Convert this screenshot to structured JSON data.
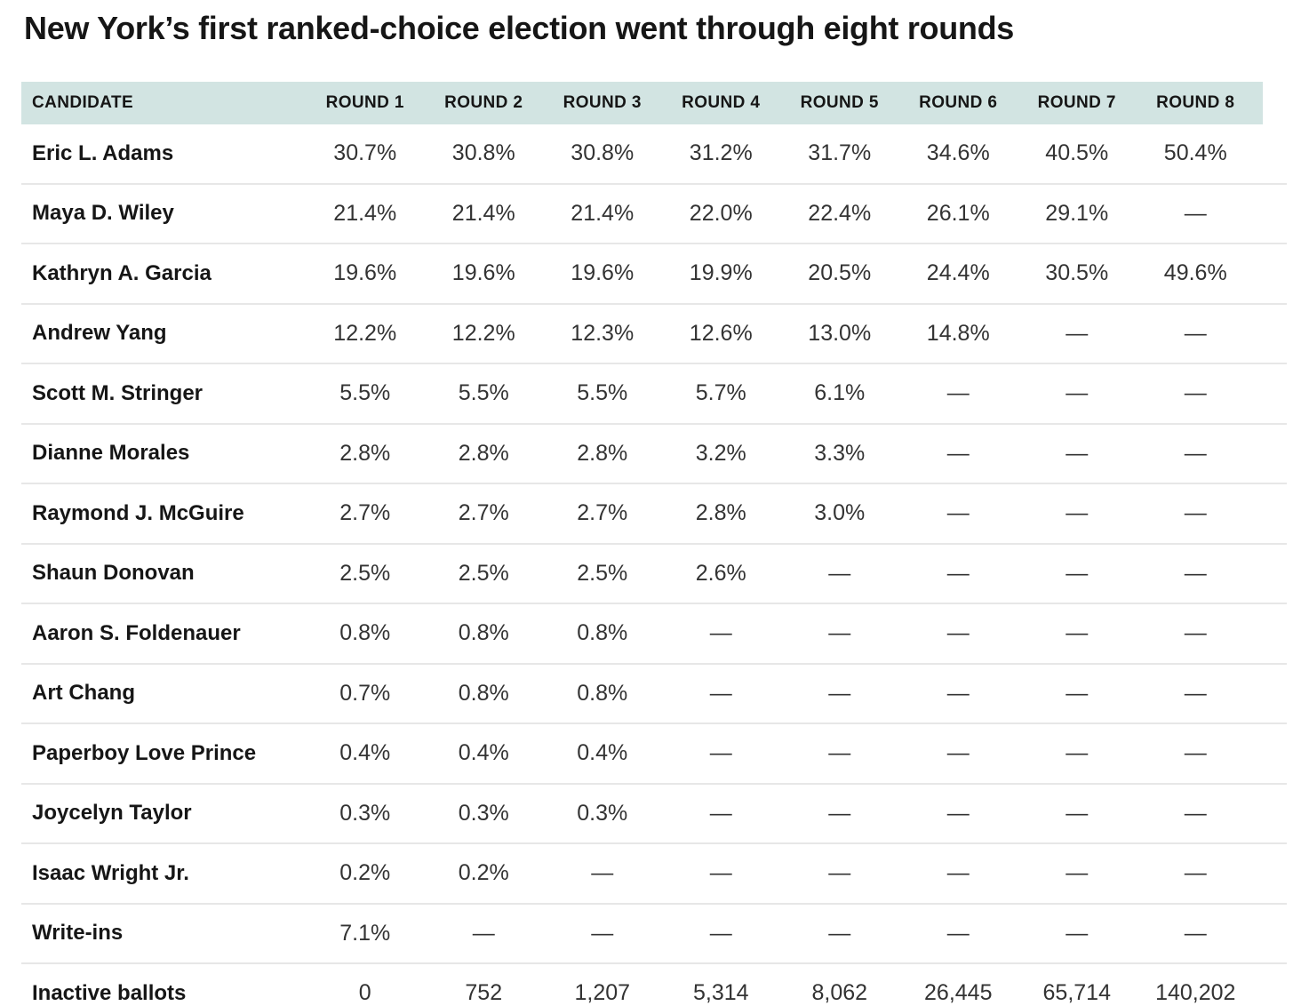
{
  "title": "New York’s first ranked-choice election went through eight rounds",
  "colors": {
    "header_bg": "#d2e4e2",
    "divider": "#e7e7e7",
    "title_text": "#161616",
    "value_text": "#333333"
  },
  "chart_data": {
    "type": "table",
    "title": "New York’s first ranked-choice election went through eight rounds",
    "columns": [
      "CANDIDATE",
      "ROUND 1",
      "ROUND 2",
      "ROUND 3",
      "ROUND 4",
      "ROUND 5",
      "ROUND 6",
      "ROUND 7",
      "ROUND 8"
    ],
    "rows": [
      {
        "candidate": "Eric L. Adams",
        "values": [
          "30.7%",
          "30.8%",
          "30.8%",
          "31.2%",
          "31.7%",
          "34.6%",
          "40.5%",
          "50.4%"
        ]
      },
      {
        "candidate": "Maya D. Wiley",
        "values": [
          "21.4%",
          "21.4%",
          "21.4%",
          "22.0%",
          "22.4%",
          "26.1%",
          "29.1%",
          "—"
        ]
      },
      {
        "candidate": "Kathryn A. Garcia",
        "values": [
          "19.6%",
          "19.6%",
          "19.6%",
          "19.9%",
          "20.5%",
          "24.4%",
          "30.5%",
          "49.6%"
        ]
      },
      {
        "candidate": "Andrew Yang",
        "values": [
          "12.2%",
          "12.2%",
          "12.3%",
          "12.6%",
          "13.0%",
          "14.8%",
          "—",
          "—"
        ]
      },
      {
        "candidate": "Scott M. Stringer",
        "values": [
          "5.5%",
          "5.5%",
          "5.5%",
          "5.7%",
          "6.1%",
          "—",
          "—",
          "—"
        ]
      },
      {
        "candidate": "Dianne Morales",
        "values": [
          "2.8%",
          "2.8%",
          "2.8%",
          "3.2%",
          "3.3%",
          "—",
          "—",
          "—"
        ]
      },
      {
        "candidate": "Raymond J. McGuire",
        "values": [
          "2.7%",
          "2.7%",
          "2.7%",
          "2.8%",
          "3.0%",
          "—",
          "—",
          "—"
        ]
      },
      {
        "candidate": "Shaun Donovan",
        "values": [
          "2.5%",
          "2.5%",
          "2.5%",
          "2.6%",
          "—",
          "—",
          "—",
          "—"
        ]
      },
      {
        "candidate": "Aaron S. Foldenauer",
        "values": [
          "0.8%",
          "0.8%",
          "0.8%",
          "—",
          "—",
          "—",
          "—",
          "—"
        ]
      },
      {
        "candidate": "Art Chang",
        "values": [
          "0.7%",
          "0.8%",
          "0.8%",
          "—",
          "—",
          "—",
          "—",
          "—"
        ]
      },
      {
        "candidate": "Paperboy Love Prince",
        "values": [
          "0.4%",
          "0.4%",
          "0.4%",
          "—",
          "—",
          "—",
          "—",
          "—"
        ]
      },
      {
        "candidate": "Joycelyn Taylor",
        "values": [
          "0.3%",
          "0.3%",
          "0.3%",
          "—",
          "—",
          "—",
          "—",
          "—"
        ]
      },
      {
        "candidate": "Isaac Wright Jr.",
        "values": [
          "0.2%",
          "0.2%",
          "—",
          "—",
          "—",
          "—",
          "—",
          "—"
        ]
      },
      {
        "candidate": "Write-ins",
        "values": [
          "7.1%",
          "—",
          "—",
          "—",
          "—",
          "—",
          "—",
          "—"
        ]
      },
      {
        "candidate": "Inactive ballots",
        "values": [
          "0",
          "752",
          "1,207",
          "5,314",
          "8,062",
          "26,445",
          "65,714",
          "140,202"
        ]
      }
    ]
  }
}
